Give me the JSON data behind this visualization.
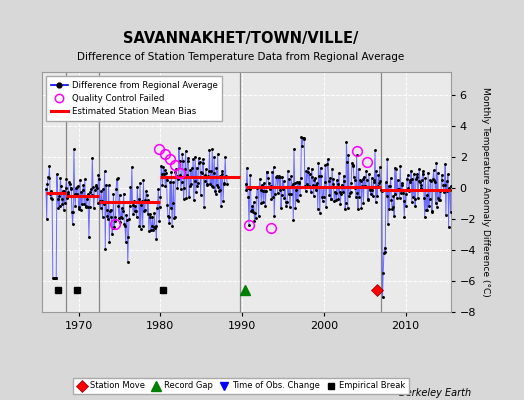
{
  "title": "SAVANNAKHET/TOWN/VILLE/",
  "subtitle": "Difference of Station Temperature Data from Regional Average",
  "ylabel": "Monthly Temperature Anomaly Difference (°C)",
  "credit": "Berkeley Earth",
  "xlim": [
    1965.5,
    2015.5
  ],
  "ylim": [
    -8,
    7.5
  ],
  "yticks": [
    -8,
    -6,
    -4,
    -2,
    0,
    2,
    4,
    6
  ],
  "xticks": [
    1970,
    1980,
    1990,
    2000,
    2010
  ],
  "bg_color": "#d8d8d8",
  "plot_bg_color": "#eaeaea",
  "grid_color": "#ffffff",
  "segment_biases": [
    {
      "start": 1966.0,
      "end": 1968.5,
      "bias": -0.3
    },
    {
      "start": 1968.5,
      "end": 1972.5,
      "bias": -0.5
    },
    {
      "start": 1972.5,
      "end": 1980.0,
      "bias": -0.9
    },
    {
      "start": 1980.0,
      "end": 1989.7,
      "bias": 0.75
    },
    {
      "start": 1990.5,
      "end": 2007.0,
      "bias": 0.1
    },
    {
      "start": 2007.0,
      "end": 2015.5,
      "bias": -0.15
    }
  ],
  "vert_lines": [
    1968.5,
    1972.5,
    1989.7,
    2007.0
  ],
  "station_moves": [
    2006.5
  ],
  "record_gaps": [
    1990.4
  ],
  "obs_changes": [],
  "empirical_breaks": [
    1967.5,
    1969.8,
    1980.3
  ],
  "qc_failed_approx": [
    [
      1979.8,
      2.5
    ],
    [
      1980.5,
      2.2
    ],
    [
      1981.2,
      1.9
    ],
    [
      1981.8,
      1.5
    ],
    [
      1982.4,
      1.0
    ],
    [
      1974.5,
      -2.3
    ],
    [
      1990.8,
      -2.4
    ],
    [
      1993.5,
      -2.6
    ],
    [
      2004.0,
      2.4
    ],
    [
      2005.3,
      1.7
    ]
  ],
  "seed": 17
}
